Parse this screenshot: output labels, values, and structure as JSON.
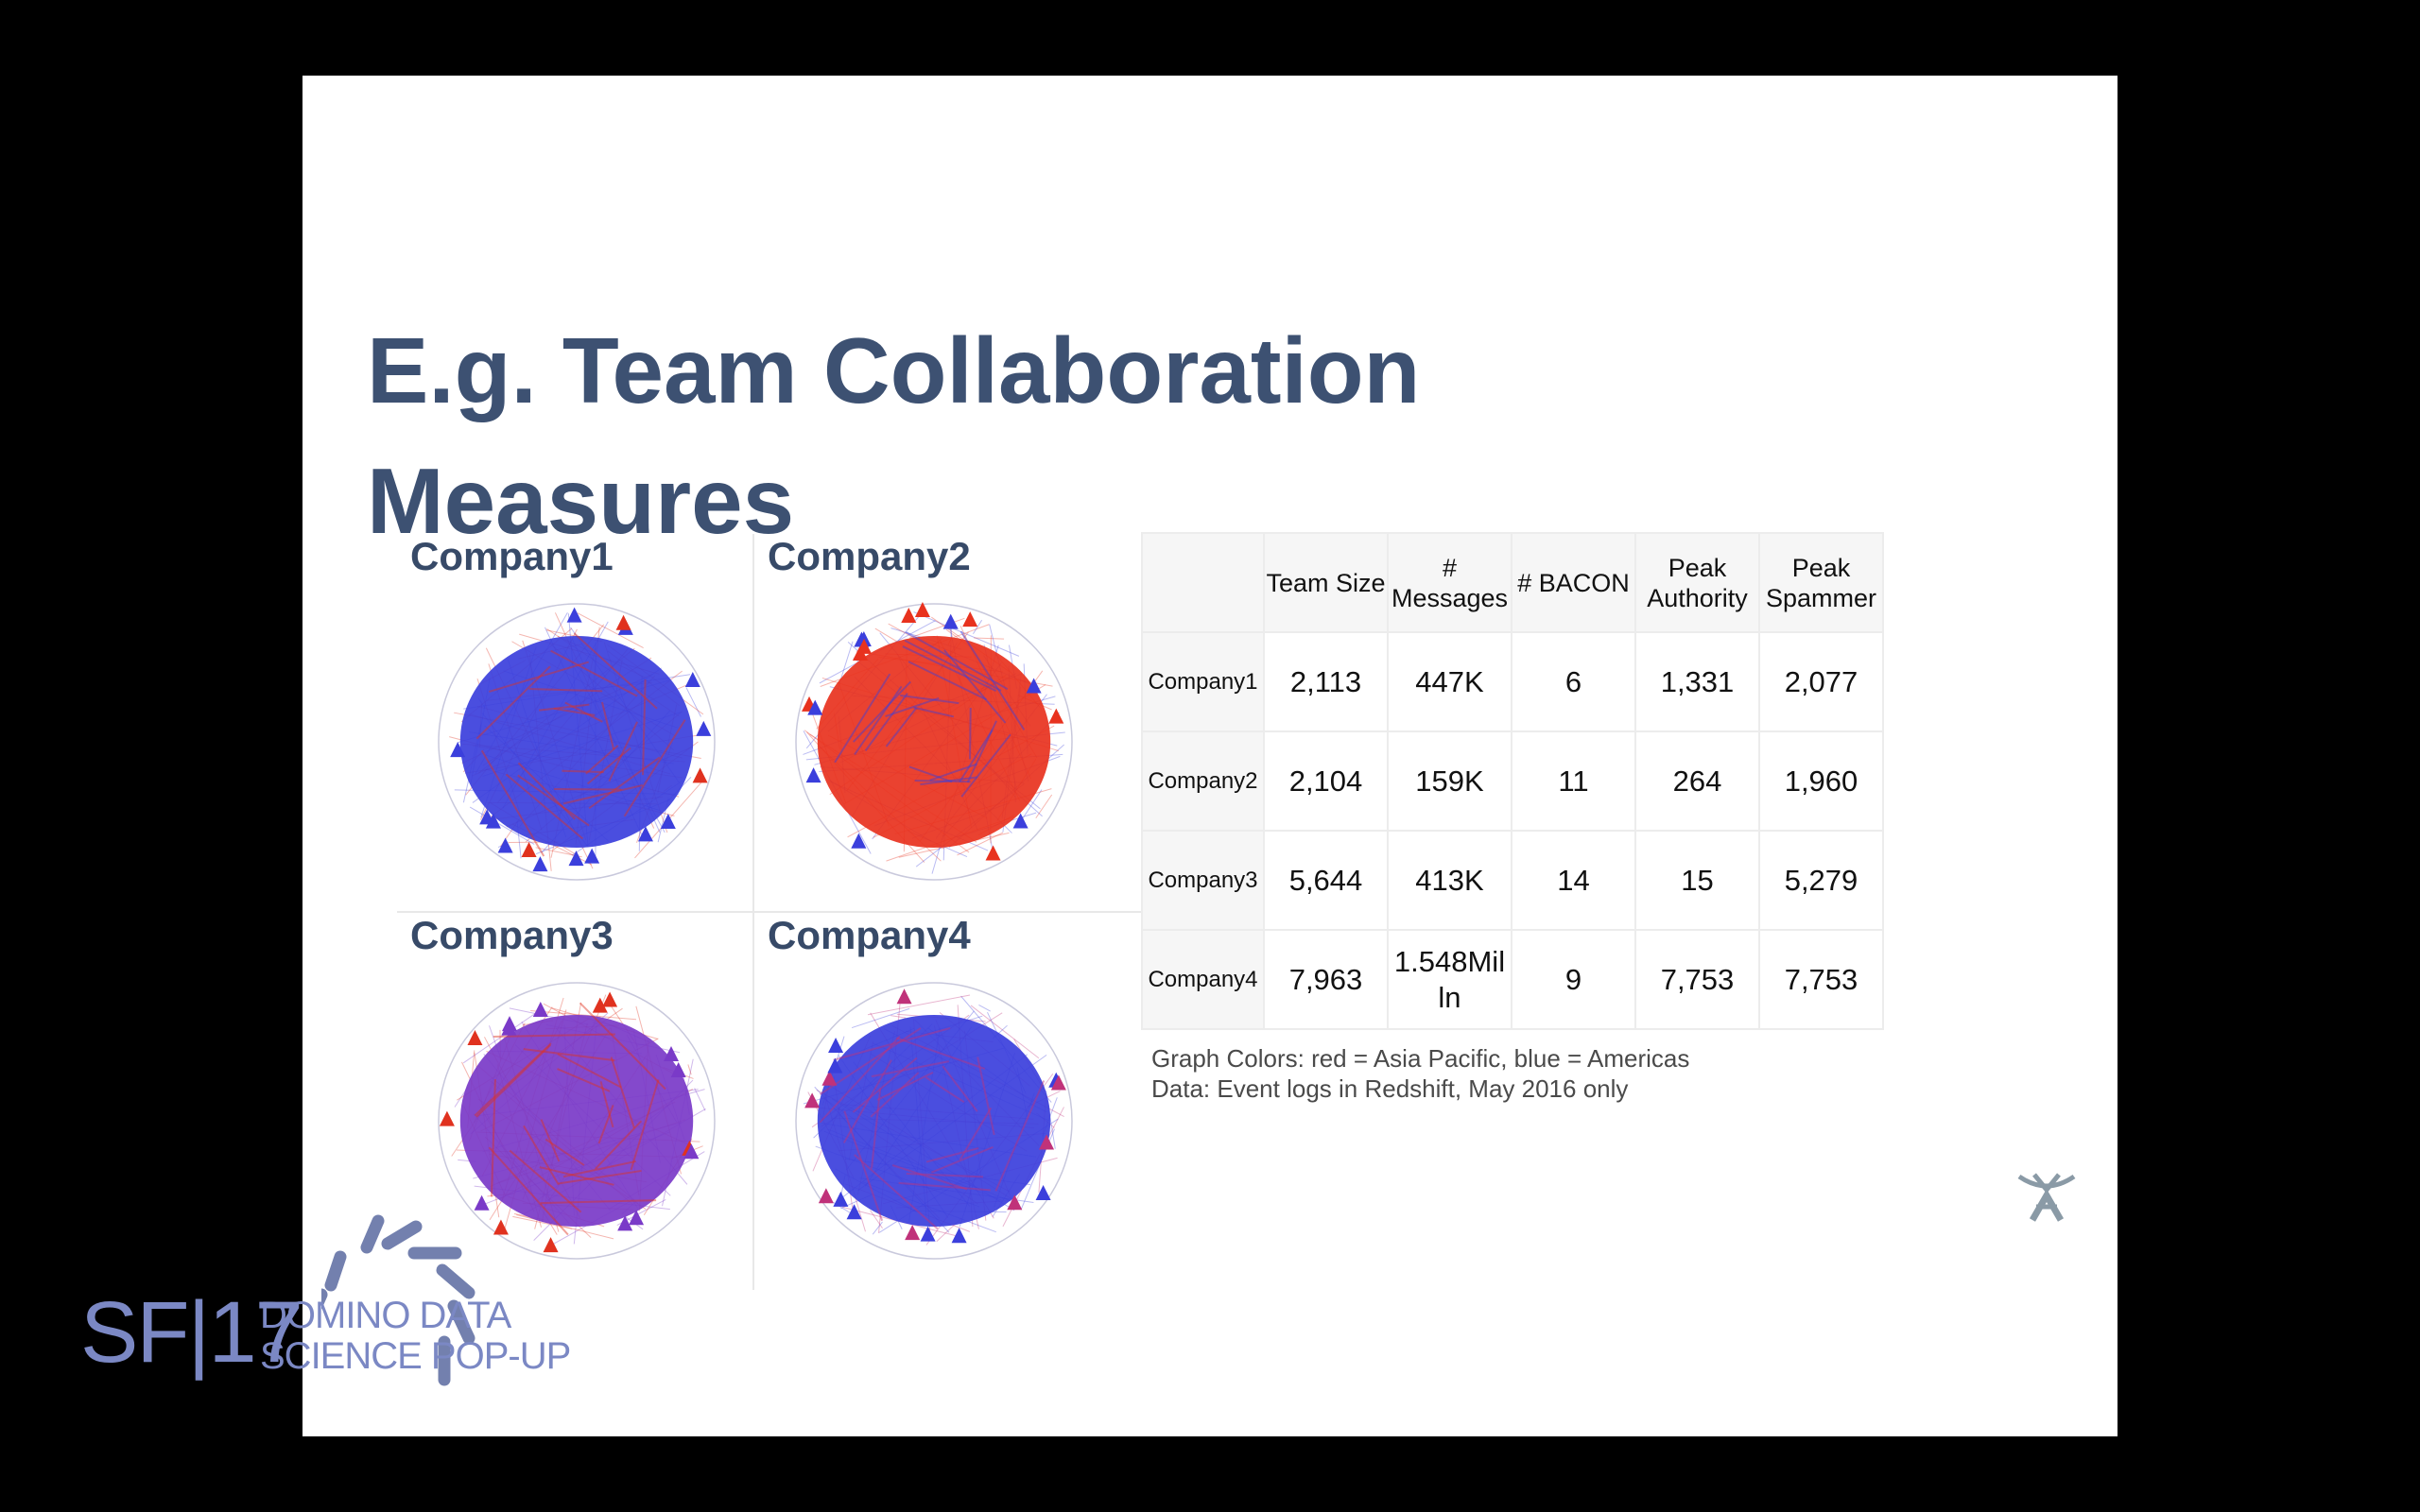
{
  "slide": {
    "title_line1": "E.g. Team Collaboration",
    "title_line2": "Measures"
  },
  "graphs": [
    {
      "label": "Company1",
      "dominant_color": "#3b3fdc",
      "accent_color": "#e0321f"
    },
    {
      "label": "Company2",
      "dominant_color": "#e8321e",
      "accent_color": "#3b3fdc"
    },
    {
      "label": "Company3",
      "dominant_color": "#7a3ac8",
      "accent_color": "#e0321f"
    },
    {
      "label": "Company4",
      "dominant_color": "#3b3fdc",
      "accent_color": "#c0327a"
    }
  ],
  "table": {
    "headers": [
      "Team Size",
      "# Messages",
      "# BACON",
      "Peak Authority",
      "Peak Spammer"
    ],
    "rows": [
      {
        "name": "Company1",
        "cells": [
          "2,113",
          "447K",
          "6",
          "1,331",
          "2,077"
        ]
      },
      {
        "name": "Company2",
        "cells": [
          "2,104",
          "159K",
          "11",
          "264",
          "1,960"
        ]
      },
      {
        "name": "Company3",
        "cells": [
          "5,644",
          "413K",
          "14",
          "15",
          "5,279"
        ]
      },
      {
        "name": "Company4",
        "cells": [
          "7,963",
          "1.548Mil ln",
          "9",
          "7,753",
          "7,753"
        ]
      }
    ]
  },
  "notes": {
    "line1": "Graph Colors:  red = Asia Pacific, blue = Americas",
    "line2": "Data:  Event logs in Redshift, May 2016 only"
  },
  "badge": {
    "sf_text": "SF|17",
    "line1": "DOMINO DATA",
    "line2": "SCIENCE POP-UP"
  },
  "colors": {
    "title": "#3d5172",
    "badge": "#7b88c4",
    "logo": "#8a9aa6"
  },
  "icons": {
    "logo": "atlassian-logo-icon",
    "burst": "sparkle-burst-icon"
  }
}
